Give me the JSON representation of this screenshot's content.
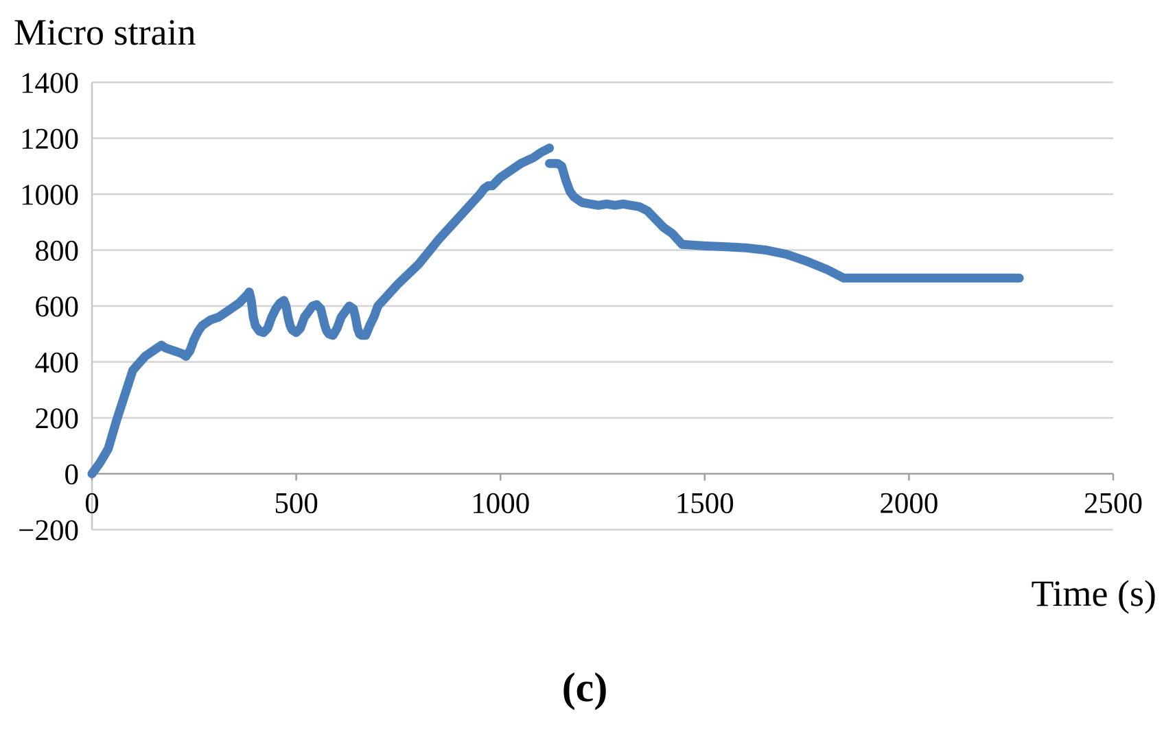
{
  "chart_data": {
    "type": "line",
    "title": "",
    "xlabel": "Time (s)",
    "ylabel": "Micro strain",
    "panel_label": "(c)",
    "xlim": [
      0,
      2500
    ],
    "ylim": [
      -200,
      1400
    ],
    "xticks": [
      0,
      500,
      1000,
      1500,
      2000,
      2500
    ],
    "yticks": [
      -200,
      0,
      200,
      400,
      600,
      800,
      1000,
      1200,
      1400
    ],
    "xtick_labels": [
      "0",
      "500",
      "1000",
      "1500",
      "2000",
      "2500"
    ],
    "ytick_labels": [
      "−200",
      "0",
      "200",
      "400",
      "600",
      "800",
      "1000",
      "1200",
      "1400"
    ],
    "grid": true,
    "legend": "none",
    "line_color": "#4a7ebb",
    "segments": [
      {
        "x": [
          0,
          10,
          20,
          40,
          60,
          80,
          100,
          130,
          160,
          170,
          180,
          200,
          220,
          230,
          240,
          250,
          260,
          270,
          280,
          290,
          300,
          310,
          320,
          340,
          360,
          380,
          385,
          390,
          395,
          400,
          410,
          420,
          430,
          440,
          450,
          460,
          470,
          475,
          480,
          485,
          490,
          500,
          510,
          520,
          530,
          540,
          550,
          560,
          565,
          570,
          575,
          580,
          590,
          600,
          610,
          620,
          630,
          640,
          645,
          650,
          655,
          660,
          670,
          680,
          690,
          700,
          750,
          800,
          850,
          900,
          950,
          960,
          970,
          980,
          1000,
          1050,
          1080,
          1100,
          1120
        ],
        "y": [
          0,
          20,
          40,
          90,
          190,
          280,
          370,
          420,
          450,
          460,
          450,
          440,
          430,
          420,
          440,
          480,
          510,
          530,
          540,
          550,
          555,
          560,
          570,
          590,
          610,
          640,
          650,
          620,
          560,
          530,
          510,
          505,
          520,
          560,
          590,
          610,
          620,
          600,
          560,
          530,
          515,
          505,
          520,
          560,
          580,
          600,
          605,
          590,
          560,
          530,
          510,
          500,
          495,
          520,
          560,
          580,
          600,
          590,
          560,
          520,
          500,
          495,
          495,
          530,
          560,
          600,
          680,
          750,
          840,
          920,
          1000,
          1020,
          1030,
          1030,
          1060,
          1110,
          1130,
          1150,
          1165
        ]
      },
      {
        "x": [
          1120,
          1140,
          1150,
          1160,
          1170,
          1180,
          1200,
          1220,
          1240,
          1260,
          1280,
          1300,
          1320,
          1340,
          1360,
          1380,
          1400,
          1420,
          1445
        ],
        "y": [
          1110,
          1110,
          1100,
          1050,
          1010,
          990,
          970,
          965,
          960,
          965,
          960,
          965,
          960,
          955,
          940,
          910,
          880,
          860,
          820
        ]
      },
      {
        "x": [
          1450,
          1500,
          1550,
          1600,
          1650,
          1700,
          1750,
          1800,
          1820,
          1840,
          1850,
          1900,
          2000,
          2100,
          2200,
          2270
        ],
        "y": [
          820,
          815,
          812,
          808,
          800,
          785,
          760,
          730,
          715,
          700,
          700,
          700,
          700,
          700,
          700,
          700
        ]
      }
    ]
  }
}
